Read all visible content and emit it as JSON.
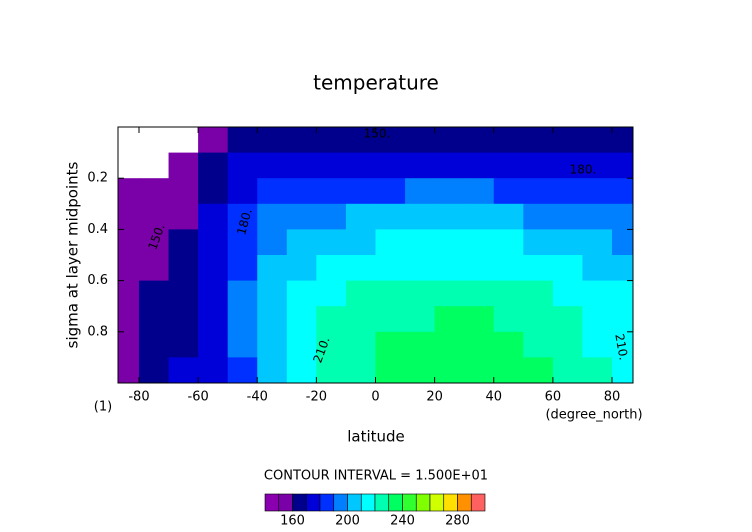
{
  "chart_data": {
    "type": "contour",
    "title": "temperature",
    "x_label": "latitude",
    "x_unit": "(degree_north)",
    "y_label": "sigma at layer midpoints",
    "y_unit": "(1)",
    "contour_interval": "CONTOUR INTERVAL = 1.500E+01",
    "contour_labels": [
      "150.",
      "150.",
      "180.",
      "180.",
      "210.",
      "210."
    ],
    "x": [
      -85,
      -75,
      -65,
      -55,
      -45,
      -35,
      -25,
      -15,
      -5,
      5,
      15,
      25,
      35,
      45,
      55,
      65,
      75,
      85
    ],
    "y": [
      0.05,
      0.15,
      0.25,
      0.35,
      0.45,
      0.55,
      0.65,
      0.75,
      0.85,
      0.95
    ],
    "z": [
      [
        null,
        null,
        null,
        155,
        162,
        165,
        165,
        165,
        165,
        166,
        166,
        166,
        166,
        166,
        167,
        167,
        168,
        168
      ],
      [
        null,
        null,
        152,
        160,
        172,
        174,
        175,
        175,
        176,
        176,
        177,
        177,
        177,
        178,
        178,
        178,
        177,
        176
      ],
      [
        150,
        150,
        152,
        165,
        178,
        183,
        186,
        187,
        188,
        189,
        190,
        190,
        190,
        189,
        188,
        186,
        184,
        182
      ],
      [
        150,
        152,
        158,
        170,
        182,
        192,
        196,
        198,
        200,
        200,
        201,
        201,
        201,
        200,
        199,
        197,
        194,
        191
      ],
      [
        150,
        155,
        162,
        172,
        185,
        198,
        204,
        207,
        209,
        210,
        211,
        211,
        211,
        210,
        208,
        205,
        202,
        198
      ],
      [
        152,
        158,
        165,
        174,
        188,
        202,
        209,
        213,
        216,
        218,
        219,
        219,
        219,
        218,
        216,
        212,
        208,
        204
      ],
      [
        153,
        160,
        167,
        176,
        190,
        204,
        213,
        218,
        222,
        224,
        225,
        226,
        226,
        225,
        222,
        219,
        214,
        210
      ],
      [
        154,
        162,
        168,
        177,
        190,
        205,
        216,
        222,
        226,
        228,
        229,
        230,
        230,
        229,
        227,
        223,
        218,
        213
      ],
      [
        155,
        163,
        169,
        178,
        190,
        205,
        217,
        224,
        228,
        231,
        232,
        233,
        233,
        232,
        229,
        225,
        219,
        214
      ],
      [
        155,
        163,
        170,
        178,
        188,
        202,
        215,
        223,
        228,
        231,
        233,
        235,
        236,
        235,
        231,
        226,
        220,
        214
      ]
    ],
    "xlim": [
      -87.1,
      87.1
    ],
    "ylim": [
      1,
      0
    ],
    "xticks": [
      -80,
      -60,
      -40,
      -20,
      0,
      20,
      40,
      60,
      80
    ],
    "yticks": [
      0.2,
      0.4,
      0.6,
      0.8
    ],
    "levels": [
      140,
      150,
      160,
      170,
      180,
      190,
      200,
      210,
      220,
      230,
      240,
      250,
      260,
      270,
      280,
      290,
      300
    ],
    "colors": [
      "#8a00b0",
      "#7a00a8",
      "#00008c",
      "#0000d8",
      "#0030ff",
      "#0080ff",
      "#00c8ff",
      "#00ffff",
      "#00ffb0",
      "#00ff60",
      "#30ff30",
      "#80ff00",
      "#d0ff00",
      "#ffe000",
      "#ff9000",
      "#ff6060"
    ],
    "colorbar_ticks": [
      160,
      200,
      240,
      280
    ]
  }
}
